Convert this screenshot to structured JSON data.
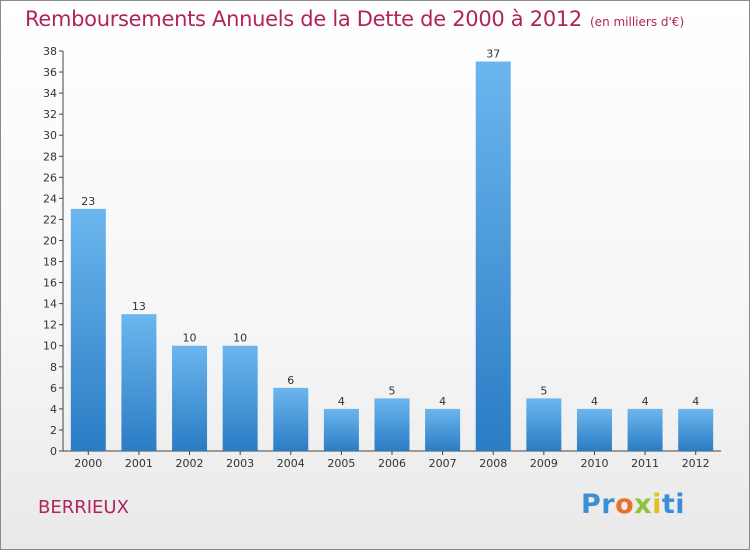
{
  "title": "Remboursements Annuels de la Dette de 2000 à 2012",
  "subtitle": "(en milliers d'€)",
  "town": "BERRIEUX",
  "logo": {
    "p": "Pr",
    "o": "o",
    "x": "x",
    "i": "i",
    "ti": "ti"
  },
  "colors": {
    "title": "#b0245d",
    "bar_light": "#6cb6ee",
    "bar_dark": "#2a7cc4",
    "axis": "#444444"
  },
  "chart_data": {
    "type": "bar",
    "categories": [
      "2000",
      "2001",
      "2002",
      "2003",
      "2004",
      "2005",
      "2006",
      "2007",
      "2008",
      "2009",
      "2010",
      "2011",
      "2012"
    ],
    "values": [
      23,
      13,
      10,
      10,
      6,
      4,
      5,
      4,
      37,
      5,
      4,
      4,
      4
    ],
    "ylim": [
      0,
      38
    ],
    "yticks": [
      0,
      2,
      4,
      6,
      8,
      10,
      12,
      14,
      16,
      18,
      20,
      22,
      24,
      26,
      28,
      30,
      32,
      34,
      36,
      38
    ],
    "data_labels": [
      "23",
      "13",
      "10",
      "10",
      "6",
      "4",
      "5",
      "4",
      "37",
      "5",
      "4",
      "4",
      "4"
    ]
  }
}
